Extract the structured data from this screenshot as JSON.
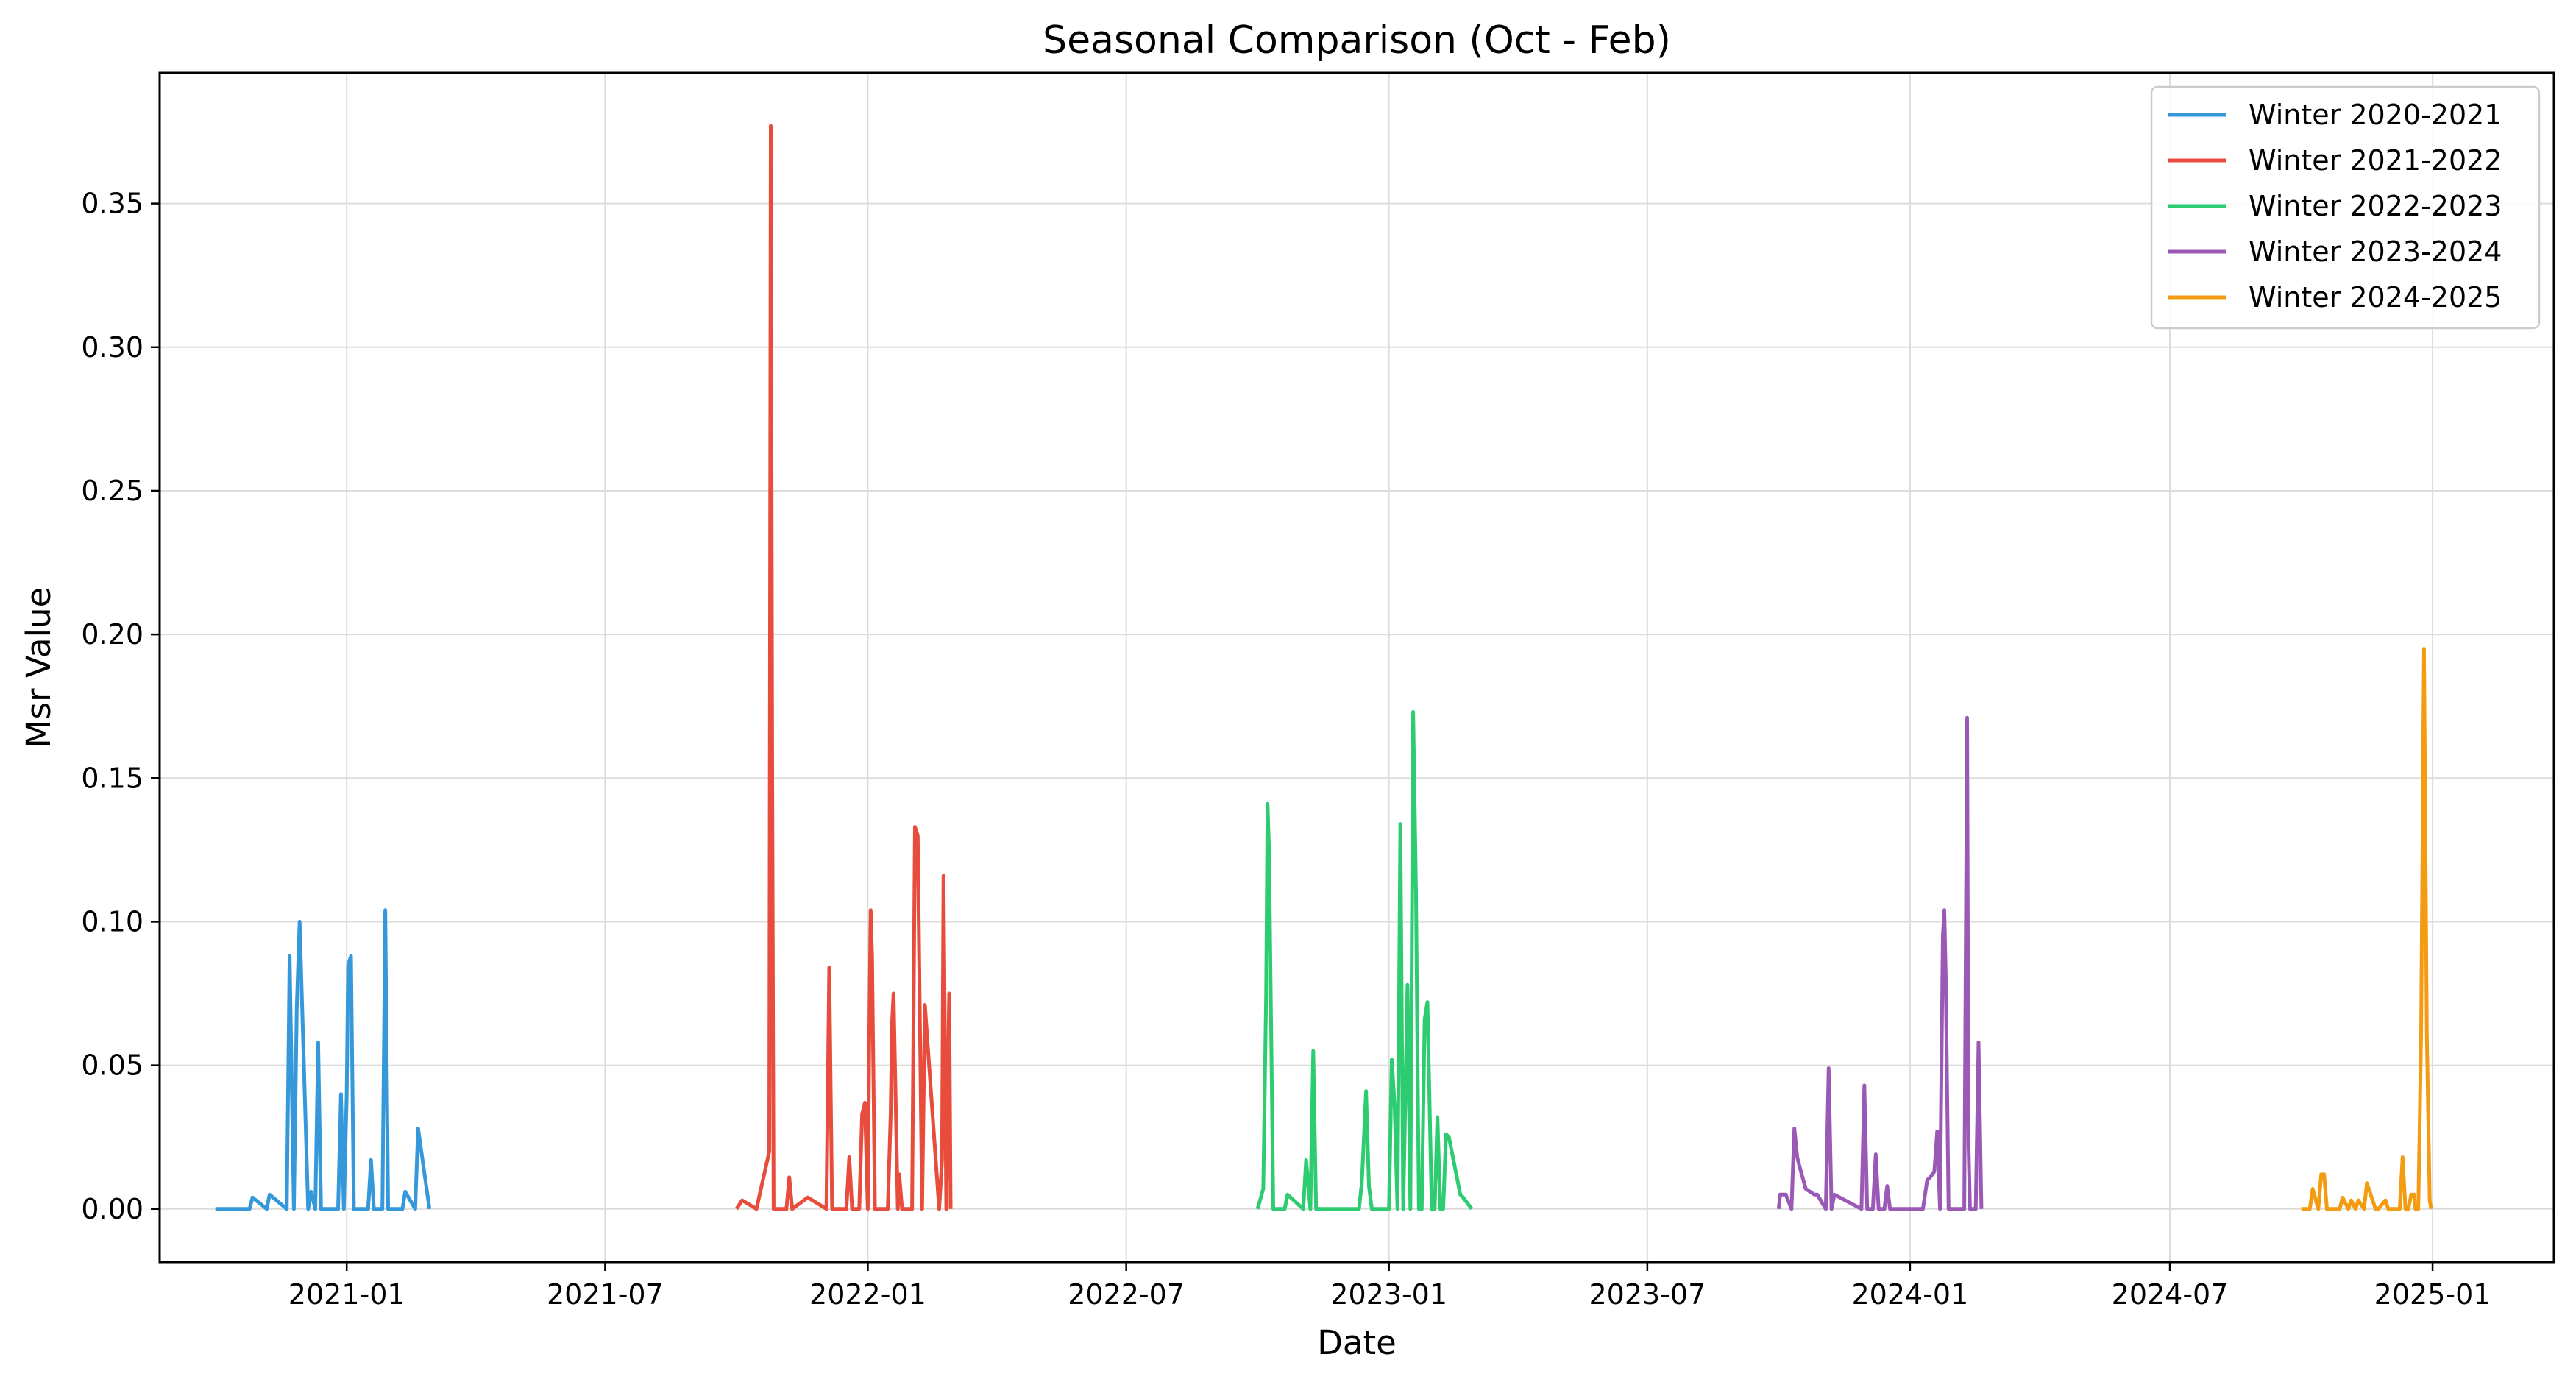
{
  "chart_data": {
    "type": "line",
    "title": "Seasonal Comparison (Oct - Feb)",
    "xlabel": "Date",
    "ylabel": "Msr Value",
    "x_ticks": [
      "2021-01",
      "2021-07",
      "2022-01",
      "2022-07",
      "2023-01",
      "2023-07",
      "2024-01",
      "2024-07",
      "2025-01"
    ],
    "y_ticks": [
      "0.00",
      "0.05",
      "0.10",
      "0.15",
      "0.20",
      "0.25",
      "0.30",
      "0.35"
    ],
    "xlim": [
      "2020-08-23",
      "2025-03-27"
    ],
    "ylim": [
      -0.0185,
      0.3955
    ],
    "grid": true,
    "legend_position": "top-right",
    "series": [
      {
        "name": "Winter 2020-2021",
        "color": "#3498db",
        "x": [
          "2020-10-01",
          "2020-10-25",
          "2020-10-27",
          "2020-11-06",
          "2020-11-08",
          "2020-11-20",
          "2020-11-22",
          "2020-11-25",
          "2020-11-27",
          "2020-11-29",
          "2020-12-05",
          "2020-12-07",
          "2020-12-10",
          "2020-12-12",
          "2020-12-14",
          "2020-12-26",
          "2020-12-28",
          "2020-12-30",
          "2021-01-01",
          "2021-01-02",
          "2021-01-04",
          "2021-01-06",
          "2021-01-16",
          "2021-01-18",
          "2021-01-20",
          "2021-01-26",
          "2021-01-28",
          "2021-01-30",
          "2021-02-09",
          "2021-02-11",
          "2021-02-18",
          "2021-02-20",
          "2021-02-28"
        ],
        "values": [
          0,
          0,
          0.004,
          0,
          0.005,
          0,
          0.088,
          0,
          0.07,
          0.1,
          0,
          0.006,
          0,
          0.058,
          0,
          0,
          0.04,
          0,
          0.04,
          0.085,
          0.088,
          0,
          0,
          0.017,
          0,
          0,
          0.104,
          0,
          0,
          0.006,
          0,
          0.028,
          0
        ]
      },
      {
        "name": "Winter 2021-2022",
        "color": "#e74c3c",
        "x": [
          "2021-10-01",
          "2021-10-05",
          "2021-10-15",
          "2021-10-24",
          "2021-10-25",
          "2021-10-26",
          "2021-10-27",
          "2021-11-05",
          "2021-11-07",
          "2021-11-09",
          "2021-11-20",
          "2021-12-03",
          "2021-12-05",
          "2021-12-07",
          "2021-12-17",
          "2021-12-19",
          "2021-12-21",
          "2021-12-26",
          "2021-12-28",
          "2021-12-30",
          "2022-01-01",
          "2022-01-02",
          "2022-01-03",
          "2022-01-04",
          "2022-01-06",
          "2022-01-15",
          "2022-01-17",
          "2022-01-18",
          "2022-01-19",
          "2022-01-22",
          "2022-01-23",
          "2022-01-25",
          "2022-02-01",
          "2022-02-03",
          "2022-02-05",
          "2022-02-08",
          "2022-02-10",
          "2022-02-20",
          "2022-02-22",
          "2022-02-23",
          "2022-02-25",
          "2022-02-27",
          "2022-02-28"
        ],
        "values": [
          0,
          0.003,
          0,
          0.02,
          0.377,
          0.16,
          0,
          0,
          0.011,
          0,
          0.004,
          0,
          0.084,
          0,
          0,
          0.018,
          0,
          0,
          0.033,
          0.037,
          0,
          0.06,
          0.104,
          0.088,
          0,
          0,
          0.033,
          0.065,
          0.075,
          0,
          0.012,
          0,
          0,
          0.133,
          0.13,
          0,
          0.071,
          0,
          0.017,
          0.116,
          0,
          0.075,
          0
        ]
      },
      {
        "name": "Winter 2022-2023",
        "color": "#2ecc71",
        "x": [
          "2022-10-01",
          "2022-10-05",
          "2022-10-07",
          "2022-10-08",
          "2022-10-09",
          "2022-10-12",
          "2022-10-20",
          "2022-10-22",
          "2022-11-02",
          "2022-11-04",
          "2022-11-07",
          "2022-11-09",
          "2022-11-11",
          "2022-12-11",
          "2022-12-13",
          "2022-12-16",
          "2022-12-18",
          "2022-12-20",
          "2022-12-30",
          "2023-01-01",
          "2023-01-03",
          "2023-01-05",
          "2023-01-07",
          "2023-01-09",
          "2023-01-11",
          "2023-01-14",
          "2023-01-16",
          "2023-01-18",
          "2023-01-20",
          "2023-01-22",
          "2023-01-24",
          "2023-01-26",
          "2023-01-28",
          "2023-01-31",
          "2023-02-02",
          "2023-02-04",
          "2023-02-06",
          "2023-02-08",
          "2023-02-10",
          "2023-02-12",
          "2023-02-20",
          "2023-02-22",
          "2023-02-28"
        ],
        "values": [
          0,
          0.007,
          0.075,
          0.141,
          0.125,
          0,
          0,
          0.005,
          0,
          0.017,
          0,
          0.055,
          0,
          0,
          0.009,
          0.041,
          0.008,
          0,
          0,
          0,
          0.052,
          0.036,
          0,
          0.134,
          0,
          0.078,
          0,
          0.173,
          0.11,
          0,
          0,
          0.066,
          0.072,
          0,
          0,
          0.032,
          0,
          0,
          0.026,
          0.025,
          0.005,
          0.004,
          0
        ]
      },
      {
        "name": "Winter 2023-2024",
        "color": "#9b59b6",
        "x": [
          "2023-10-01",
          "2023-10-02",
          "2023-10-06",
          "2023-10-10",
          "2023-10-12",
          "2023-10-14",
          "2023-10-16",
          "2023-10-20",
          "2023-10-26",
          "2023-10-28",
          "2023-11-03",
          "2023-11-05",
          "2023-11-07",
          "2023-11-09",
          "2023-11-28",
          "2023-11-30",
          "2023-12-02",
          "2023-12-06",
          "2023-12-08",
          "2023-12-10",
          "2023-12-14",
          "2023-12-16",
          "2023-12-18",
          "2024-01-10",
          "2024-01-13",
          "2024-01-15",
          "2024-01-18",
          "2024-01-20",
          "2024-01-22",
          "2024-01-24",
          "2024-01-25",
          "2024-01-26",
          "2024-01-28",
          "2024-02-08",
          "2024-02-10",
          "2024-02-11",
          "2024-02-12",
          "2024-02-16",
          "2024-02-18",
          "2024-02-20"
        ],
        "values": [
          0,
          0.005,
          0.005,
          0,
          0.028,
          0.018,
          0.014,
          0.007,
          0.005,
          0.005,
          0,
          0.049,
          0,
          0.005,
          0,
          0.043,
          0,
          0,
          0.019,
          0,
          0,
          0.008,
          0,
          0,
          0.01,
          0.011,
          0.013,
          0.027,
          0,
          0.095,
          0.104,
          0.081,
          0,
          0,
          0.171,
          0.022,
          0,
          0,
          0.058,
          0
        ]
      },
      {
        "name": "Winter 2024-2025",
        "color": "#f39c12",
        "x": [
          "2024-10-01",
          "2024-10-07",
          "2024-10-09",
          "2024-10-13",
          "2024-10-15",
          "2024-10-17",
          "2024-10-19",
          "2024-10-28",
          "2024-10-30",
          "2024-11-03",
          "2024-11-05",
          "2024-11-08",
          "2024-11-10",
          "2024-11-14",
          "2024-11-16",
          "2024-11-22",
          "2024-11-24",
          "2024-11-29",
          "2024-12-01",
          "2024-12-09",
          "2024-12-11",
          "2024-12-13",
          "2024-12-15",
          "2024-12-17",
          "2024-12-19",
          "2024-12-20",
          "2024-12-22",
          "2024-12-24",
          "2024-12-26",
          "2024-12-28",
          "2024-12-30",
          "2024-12-31"
        ],
        "values": [
          0,
          0,
          0.007,
          0,
          0.012,
          0.012,
          0,
          0,
          0.004,
          0,
          0.003,
          0,
          0.003,
          0,
          0.009,
          0,
          0,
          0.003,
          0,
          0,
          0.018,
          0,
          0,
          0.005,
          0.005,
          0,
          0,
          0.061,
          0.195,
          0.06,
          0.003,
          0
        ]
      }
    ]
  }
}
